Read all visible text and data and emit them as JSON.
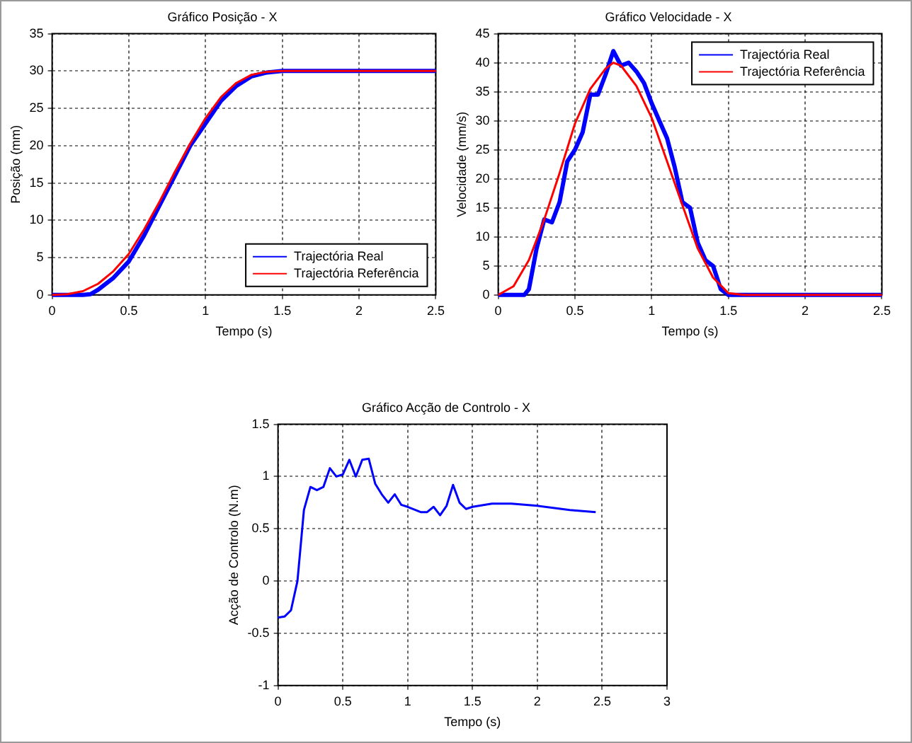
{
  "chart_data": [
    {
      "type": "line",
      "title": "Gráfico Posição - X",
      "xlabel": "Tempo (s)",
      "ylabel": "Posição (mm)",
      "xlim": [
        0,
        2.5
      ],
      "xticks": [
        0,
        0.5,
        1,
        1.5,
        2,
        2.5
      ],
      "ylim": [
        0,
        35
      ],
      "yticks": [
        0,
        5,
        10,
        15,
        20,
        25,
        30,
        35
      ],
      "grid": true,
      "legend": "bottom right",
      "marker": "none",
      "line_style": "solid",
      "series": [
        {
          "name": "Trajectória Real",
          "color": "#0000ff",
          "x": [
            0,
            0.1,
            0.2,
            0.25,
            0.3,
            0.4,
            0.5,
            0.6,
            0.7,
            0.8,
            0.9,
            1.0,
            1.1,
            1.2,
            1.3,
            1.4,
            1.5,
            2.5
          ],
          "values": [
            0,
            0,
            0,
            0.1,
            0.7,
            2.3,
            4.5,
            8,
            12,
            16,
            20,
            23,
            26,
            28,
            29.3,
            29.8,
            30,
            30
          ]
        },
        {
          "name": "Trajectória Referência",
          "color": "#ff0000",
          "x": [
            0,
            0.1,
            0.2,
            0.3,
            0.4,
            0.5,
            0.6,
            0.7,
            0.8,
            0.9,
            1.0,
            1.1,
            1.2,
            1.3,
            1.4,
            1.5,
            2.5
          ],
          "values": [
            0,
            0.1,
            0.5,
            1.5,
            3.2,
            5.5,
            8.8,
            12.5,
            16.5,
            20.3,
            23.7,
            26.5,
            28.4,
            29.5,
            29.9,
            30,
            30
          ]
        }
      ]
    },
    {
      "type": "line",
      "title": "Gráfico Velocidade - X",
      "xlabel": "Tempo (s)",
      "ylabel": "Velocidade (mm/s)",
      "xlim": [
        0,
        2.5
      ],
      "xticks": [
        0,
        0.5,
        1,
        1.5,
        2,
        2.5
      ],
      "ylim": [
        0,
        45
      ],
      "yticks": [
        0,
        5,
        10,
        15,
        20,
        25,
        30,
        35,
        40,
        45
      ],
      "grid": true,
      "legend": "top right",
      "marker": "none",
      "line_style": "solid",
      "series": [
        {
          "name": "Trajectória Real",
          "color": "#0000ff",
          "x": [
            0,
            0.17,
            0.2,
            0.25,
            0.3,
            0.35,
            0.4,
            0.45,
            0.5,
            0.55,
            0.6,
            0.65,
            0.7,
            0.75,
            0.8,
            0.85,
            0.9,
            0.95,
            1.0,
            1.05,
            1.1,
            1.15,
            1.2,
            1.25,
            1.3,
            1.35,
            1.4,
            1.45,
            1.5,
            2.5
          ],
          "values": [
            0,
            0,
            1,
            8,
            13,
            12.5,
            16,
            23,
            25,
            28,
            34.5,
            34.5,
            38,
            42,
            39.5,
            40,
            38.5,
            36.5,
            33,
            30,
            27,
            22,
            16,
            15,
            9,
            6,
            5,
            1,
            0,
            0
          ]
        },
        {
          "name": "Trajectória Referência",
          "color": "#ff0000",
          "x": [
            0,
            0.1,
            0.2,
            0.3,
            0.4,
            0.5,
            0.6,
            0.7,
            0.75,
            0.8,
            0.9,
            1.0,
            1.1,
            1.2,
            1.3,
            1.4,
            1.5,
            1.6,
            2.5
          ],
          "values": [
            0,
            1.5,
            6,
            13,
            21,
            29.5,
            35.5,
            39,
            40,
            39.5,
            36,
            30.5,
            23,
            15.5,
            8,
            3,
            0.3,
            0,
            0
          ]
        }
      ]
    },
    {
      "type": "line",
      "title": "Gráfico Acção de Controlo - X",
      "xlabel": "Tempo (s)",
      "ylabel": "Acção de Controlo (N.m)",
      "xlim": [
        0,
        3
      ],
      "xticks": [
        0,
        0.5,
        1,
        1.5,
        2,
        2.5,
        3
      ],
      "ylim": [
        -1,
        1.5
      ],
      "yticks": [
        -1,
        -0.5,
        0,
        0.5,
        1,
        1.5
      ],
      "grid": true,
      "marker": "none",
      "line_style": "solid",
      "series": [
        {
          "color": "#0000ff",
          "x": [
            0,
            0.05,
            0.1,
            0.15,
            0.2,
            0.25,
            0.3,
            0.35,
            0.4,
            0.45,
            0.5,
            0.55,
            0.6,
            0.65,
            0.7,
            0.75,
            0.8,
            0.85,
            0.9,
            0.95,
            1.0,
            1.1,
            1.15,
            1.2,
            1.25,
            1.3,
            1.35,
            1.4,
            1.45,
            1.5,
            1.65,
            1.8,
            2.0,
            2.25,
            2.45
          ],
          "values": [
            -0.35,
            -0.34,
            -0.28,
            0,
            0.68,
            0.9,
            0.87,
            0.9,
            1.08,
            1.0,
            1.02,
            1.16,
            1.0,
            1.16,
            1.17,
            0.93,
            0.83,
            0.75,
            0.83,
            0.73,
            0.71,
            0.66,
            0.66,
            0.71,
            0.63,
            0.72,
            0.92,
            0.75,
            0.69,
            0.71,
            0.74,
            0.74,
            0.72,
            0.68,
            0.66
          ]
        }
      ]
    }
  ]
}
